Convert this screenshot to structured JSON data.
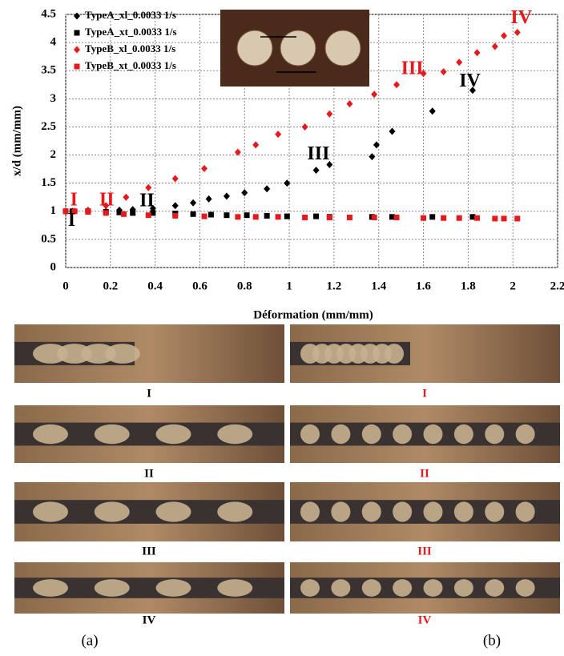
{
  "chart_data": {
    "type": "scatter",
    "xlabel": "Déformation (mm/mm)",
    "ylabel": "x/d (mm/mm)",
    "xlim": [
      0,
      2.2
    ],
    "xticks": [
      0,
      0.2,
      0.4,
      0.6,
      0.8,
      1,
      1.2,
      1.4,
      1.6,
      1.8,
      2,
      2.2
    ],
    "ylim": [
      0,
      4.5
    ],
    "yticks": [
      0,
      0.5,
      1,
      1.5,
      2,
      2.5,
      3,
      3.5,
      4,
      4.5
    ],
    "grid": true,
    "legend": "upper left",
    "series": [
      {
        "name": "TypeA_xl_0.0033 1/s",
        "color": "#000000",
        "marker": "diamond",
        "x": [
          0,
          0.03,
          0.1,
          0.18,
          0.24,
          0.3,
          0.39,
          0.49,
          0.57,
          0.64,
          0.72,
          0.8,
          0.9,
          0.99,
          1.12,
          1.18,
          1.37,
          1.39,
          1.46,
          1.64,
          1.82
        ],
        "values": [
          1.0,
          1.0,
          1.0,
          1.0,
          1.02,
          1.03,
          1.05,
          1.1,
          1.15,
          1.22,
          1.27,
          1.33,
          1.4,
          1.5,
          1.73,
          1.83,
          1.97,
          2.18,
          2.42,
          2.78,
          3.15
        ]
      },
      {
        "name": "TypeA_xt_0.0033 1/s",
        "color": "#000000",
        "marker": "square",
        "x": [
          0,
          0.03,
          0.1,
          0.18,
          0.24,
          0.3,
          0.39,
          0.49,
          0.57,
          0.65,
          0.72,
          0.81,
          0.9,
          0.99,
          1.12,
          1.18,
          1.37,
          1.46,
          1.64,
          1.82
        ],
        "values": [
          1.0,
          1.0,
          1.0,
          0.99,
          0.98,
          0.97,
          0.97,
          0.96,
          0.95,
          0.94,
          0.93,
          0.93,
          0.92,
          0.91,
          0.91,
          0.9,
          0.9,
          0.9,
          0.9,
          0.9
        ]
      },
      {
        "name": "TypeB_xl_0.0033 1/s",
        "color": "#e41a1c",
        "marker": "diamond",
        "x": [
          0,
          0.04,
          0.1,
          0.18,
          0.27,
          0.37,
          0.49,
          0.62,
          0.77,
          0.85,
          0.95,
          1.07,
          1.18,
          1.27,
          1.38,
          1.48,
          1.6,
          1.69,
          1.76,
          1.84,
          1.92,
          1.96,
          2.02
        ],
        "values": [
          1.0,
          1.0,
          1.02,
          1.1,
          1.25,
          1.42,
          1.58,
          1.76,
          2.05,
          2.18,
          2.37,
          2.5,
          2.73,
          2.91,
          3.08,
          3.25,
          3.45,
          3.48,
          3.65,
          3.82,
          3.93,
          4.12,
          4.18
        ]
      },
      {
        "name": "TypeB_xt_0.0033 1/s",
        "color": "#e41a1c",
        "marker": "square",
        "x": [
          0,
          0.04,
          0.1,
          0.18,
          0.26,
          0.37,
          0.49,
          0.62,
          0.77,
          0.85,
          0.95,
          1.07,
          1.18,
          1.27,
          1.38,
          1.48,
          1.6,
          1.69,
          1.76,
          1.84,
          1.92,
          1.96,
          2.02
        ],
        "values": [
          1.0,
          1.0,
          0.99,
          0.97,
          0.95,
          0.93,
          0.92,
          0.91,
          0.9,
          0.9,
          0.9,
          0.89,
          0.89,
          0.89,
          0.89,
          0.89,
          0.88,
          0.88,
          0.88,
          0.88,
          0.87,
          0.87,
          0.87
        ]
      }
    ],
    "annotations": [
      {
        "text": "I",
        "x": 0.01,
        "y": 0.82,
        "color": "#000000"
      },
      {
        "text": "II",
        "x": 0.33,
        "y": 1.17,
        "color": "#000000"
      },
      {
        "text": "III",
        "x": 1.08,
        "y": 2.0,
        "color": "#000000"
      },
      {
        "text": "IV",
        "x": 1.76,
        "y": 3.3,
        "color": "#000000"
      },
      {
        "text": "I",
        "x": 0.02,
        "y": 1.18,
        "color": "#e41a1c"
      },
      {
        "text": "II",
        "x": 0.15,
        "y": 1.18,
        "color": "#e41a1c"
      },
      {
        "text": "III",
        "x": 1.5,
        "y": 3.52,
        "color": "#e41a1c"
      },
      {
        "text": "IV",
        "x": 1.99,
        "y": 4.42,
        "color": "#e41a1c"
      }
    ]
  },
  "panels": {
    "left_labels": [
      "I",
      "II",
      "III",
      "IV"
    ],
    "left_color": "#000000",
    "right_labels": [
      "I",
      "II",
      "III",
      "IV"
    ],
    "right_color": "#e41a1c",
    "captions": [
      "(a)",
      "(b)"
    ]
  }
}
